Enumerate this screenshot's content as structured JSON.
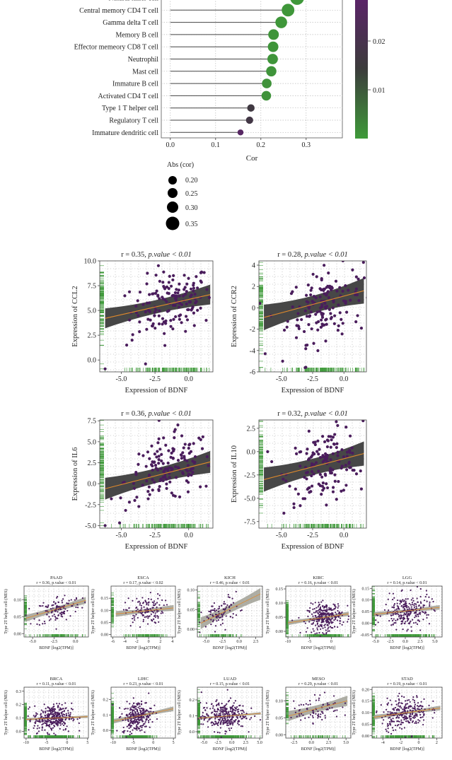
{
  "panel_a": {
    "x_axis_label": "Cor",
    "x_ticks": [
      "0.0",
      "0.1",
      "0.2",
      "0.3"
    ],
    "colorbar_ticks": [
      "0.02",
      "0.01"
    ],
    "size_legend_title": "Abs (cor)",
    "size_legend_labels": [
      "0.20",
      "0.25",
      "0.30",
      "0.35"
    ]
  },
  "chart_data": [
    {
      "type": "lollipop",
      "xlabel": "Cor",
      "xlim": [
        -0.02,
        0.38
      ],
      "color_scale": {
        "name": "p-value",
        "ticks": [
          0.02,
          0.01
        ],
        "range": [
          0.0,
          0.028
        ],
        "low_color": "#3f9a3a",
        "mid_color": "#3c3c3c",
        "high_color": "#5b2469"
      },
      "size_legend": {
        "title": "Abs (cor)",
        "levels": [
          0.2,
          0.25,
          0.3,
          0.35
        ]
      },
      "categories": [
        "Natural killer cell",
        "Central memory CD4 T cell",
        "Gamma delta T cell",
        "Memory B cell",
        "Effector memeory CD8 T cell",
        "Neutrophil",
        "Mast cell",
        "Immature B cell",
        "Activated CD4 T cell",
        "Type 1 T helper cell",
        "Regulatory T cell",
        "Immature dendritic cell"
      ],
      "values": [
        0.28,
        0.26,
        0.245,
        0.228,
        0.227,
        0.226,
        0.223,
        0.213,
        0.212,
        0.178,
        0.175,
        0.155
      ],
      "pvalues": [
        0.0003,
        0.0004,
        0.0005,
        0.0008,
        0.0008,
        0.0008,
        0.0009,
        0.0012,
        0.0012,
        0.016,
        0.017,
        0.026
      ]
    },
    {
      "type": "scatter",
      "title_r": "r = 0.35, ",
      "title_p": "p.value < 0.01",
      "xlabel": "Expression of BDNF",
      "ylabel": "Expression of CCL2",
      "xlim": [
        -6.6,
        1.8
      ],
      "ylim": [
        -1.2,
        10.0
      ],
      "x_ticks": [
        -5.0,
        -2.5,
        0.0
      ],
      "y_ticks": [
        0.0,
        2.5,
        5.0,
        7.5,
        10.0
      ],
      "x_tick_labels": [
        "-5.0",
        "-2.5",
        "0.0"
      ],
      "y_tick_labels": [
        "0.0",
        "2.5",
        "5.0",
        "7.5",
        "10.0"
      ],
      "fit": {
        "x": [
          -6.2,
          1.6
        ],
        "y": [
          4.2,
          6.6
        ]
      },
      "ci_ends": 1.0,
      "ci_mid": 0.35,
      "cloud": {
        "cx": -1.3,
        "cy": 5.8,
        "sx": 1.5,
        "sy": 1.6,
        "n": 150,
        "slope": 0.3
      },
      "extras": [
        [
          -6.2,
          -0.9
        ],
        [
          -4.6,
          1.5
        ],
        [
          -3.2,
          -0.4
        ],
        [
          -4.2,
          2.0
        ],
        [
          1.3,
          4.0
        ]
      ]
    },
    {
      "type": "scatter",
      "title_r": "r = 0.28, ",
      "title_p": "p.value < 0.01",
      "xlabel": "Expression of BDNF",
      "ylabel": "Expression of CCR2",
      "xlim": [
        -6.8,
        1.8
      ],
      "ylim": [
        -6.0,
        4.4
      ],
      "x_ticks": [
        -5.0,
        -2.5,
        0.0
      ],
      "y_ticks": [
        -6,
        -4,
        -2,
        0,
        2,
        4
      ],
      "x_tick_labels": [
        "-5.0",
        "-2.5",
        "0.0"
      ],
      "y_tick_labels": [
        "-6",
        "-4",
        "-2",
        "0",
        "2",
        "4"
      ],
      "fit": {
        "x": [
          -6.4,
          1.6
        ],
        "y": [
          -0.9,
          1.6
        ]
      },
      "ci_ends": 1.2,
      "ci_mid": 0.4,
      "cloud": {
        "cx": -1.5,
        "cy": 0.4,
        "sx": 1.5,
        "sy": 1.6,
        "n": 150,
        "slope": 0.35
      },
      "extras": [
        [
          -6.3,
          -4.3
        ],
        [
          -4.9,
          -5.0
        ],
        [
          -3.1,
          -5.6
        ],
        [
          -3.8,
          -2.8
        ],
        [
          1.4,
          -1.9
        ]
      ]
    },
    {
      "type": "scatter",
      "title_r": "r = 0.36, ",
      "title_p": "p.value < 0.01",
      "xlabel": "Expression of BDNF",
      "ylabel": "Expression of IL6",
      "xlim": [
        -6.6,
        1.8
      ],
      "ylim": [
        -5.3,
        7.6
      ],
      "x_ticks": [
        -5.0,
        -2.5,
        0.0
      ],
      "y_ticks": [
        -5.0,
        -2.5,
        0.0,
        2.5,
        5.0,
        7.5
      ],
      "x_tick_labels": [
        "-5.0",
        "-2.5",
        "0.0"
      ],
      "y_tick_labels": [
        "-5.0",
        "-2.5",
        "0.0",
        "2.5",
        "5.0",
        "7.5"
      ],
      "fit": {
        "x": [
          -6.2,
          1.6
        ],
        "y": [
          -0.6,
          2.6
        ]
      },
      "ci_ends": 1.3,
      "ci_mid": 0.45,
      "cloud": {
        "cx": -1.5,
        "cy": 1.6,
        "sx": 1.6,
        "sy": 1.9,
        "n": 150,
        "slope": 0.4
      },
      "extras": [
        [
          -6.2,
          -5.0
        ],
        [
          -4.4,
          -2.2
        ],
        [
          -4.0,
          -2.0
        ],
        [
          1.3,
          -0.3
        ],
        [
          -0.8,
          7.0
        ]
      ]
    },
    {
      "type": "scatter",
      "title_r": "r = 0.32, ",
      "title_p": "p.value < 0.01",
      "xlabel": "Expression of BDNF",
      "ylabel": "Expression of IL10",
      "xlim": [
        -6.8,
        1.8
      ],
      "ylim": [
        -8.2,
        3.4
      ],
      "x_ticks": [
        -5.0,
        -2.5,
        0.0
      ],
      "y_ticks": [
        -7.5,
        -5.0,
        -2.5,
        0.0,
        2.5
      ],
      "x_tick_labels": [
        "-5.0",
        "-2.5",
        "0.0"
      ],
      "y_tick_labels": [
        "-7.5",
        "-5.0",
        "-2.5",
        "0.0",
        "2.5"
      ],
      "fit": {
        "x": [
          -6.4,
          1.6
        ],
        "y": [
          -3.0,
          -0.2
        ]
      },
      "ci_ends": 1.3,
      "ci_mid": 0.45,
      "cloud": {
        "cx": -1.5,
        "cy": -1.4,
        "sx": 1.5,
        "sy": 1.8,
        "n": 150,
        "slope": 0.35
      },
      "extras": [
        [
          -6.1,
          0.0
        ],
        [
          -4.8,
          -6.6
        ],
        [
          -4.0,
          -5.6
        ],
        [
          1.4,
          -4.0
        ],
        [
          -0.5,
          2.8
        ]
      ]
    },
    {
      "type": "scatter",
      "title": "PAAD",
      "subtitle": "r = 0.36, p.value < 0.01",
      "xlabel": "BDNF [log2(TPM)]",
      "ylabel": "Type 2T helper cell (NES)",
      "xlim": [
        -6.0,
        1.5
      ],
      "ylim": [
        -0.01,
        0.14
      ],
      "x_tick_labels": [
        "-5.0",
        "-2.5",
        "0.0"
      ],
      "x_ticks": [
        -5.0,
        -2.5,
        0.0
      ],
      "y_tick_labels": [
        "0.00",
        "0.05",
        "0.10"
      ],
      "y_ticks": [
        0.0,
        0.05,
        0.1
      ],
      "fit": {
        "x": [
          -5.8,
          1.2
        ],
        "y": [
          0.045,
          0.098
        ]
      },
      "ci_ends": 0.01,
      "ci_mid": 0.004,
      "cloud": {
        "cx": -2.0,
        "cy": 0.072,
        "sx": 1.3,
        "sy": 0.02,
        "n": 120,
        "slope": 0.006
      }
    },
    {
      "type": "scatter",
      "title": "ESCA",
      "subtitle": "r = 0.17, p.value < 0.02",
      "xlabel": "BDNF [log2(TPM)]",
      "ylabel": "Type 2T helper cell (NES)",
      "xlim": [
        -6.3,
        4.5
      ],
      "ylim": [
        -0.01,
        0.2
      ],
      "x_tick_labels": [
        "-6",
        "-4",
        "-2",
        "0",
        "2",
        "4"
      ],
      "x_ticks": [
        -6,
        -4,
        -2,
        0,
        2,
        4
      ],
      "y_tick_labels": [
        "0.00",
        "0.05",
        "0.10",
        "0.15"
      ],
      "y_ticks": [
        0.0,
        0.05,
        0.1,
        0.15
      ],
      "fit": {
        "x": [
          -5.5,
          4.2
        ],
        "y": [
          0.085,
          0.11
        ]
      },
      "ci_ends": 0.012,
      "ci_mid": 0.004,
      "cloud": {
        "cx": -0.7,
        "cy": 0.1,
        "sx": 1.6,
        "sy": 0.03,
        "n": 130,
        "slope": 0.003
      }
    },
    {
      "type": "scatter",
      "title": "KICH",
      "subtitle": "r = 0.46, p.value < 0.01",
      "xlabel": "BDNF [log2(TPM)]",
      "ylabel": "Type 2T helper cell (NES)",
      "xlim": [
        -6.3,
        3.5
      ],
      "ylim": [
        -0.02,
        0.11
      ],
      "x_tick_labels": [
        "-5.0",
        "-2.5",
        "0.0",
        "2.5"
      ],
      "x_ticks": [
        -5.0,
        -2.5,
        0.0,
        2.5
      ],
      "y_tick_labels": [
        "0.00",
        "0.05",
        "0.10"
      ],
      "y_ticks": [
        0.0,
        0.05,
        0.1
      ],
      "fit": {
        "x": [
          -5.8,
          3.2
        ],
        "y": [
          0.015,
          0.09
        ]
      },
      "ci_ends": 0.015,
      "ci_mid": 0.005,
      "cloud": {
        "cx": -2.8,
        "cy": 0.04,
        "sx": 1.4,
        "sy": 0.018,
        "n": 90,
        "slope": 0.008
      }
    },
    {
      "type": "scatter",
      "title": "KIRC",
      "subtitle": "r = 0.16, p.value < 0.01",
      "xlabel": "BDNF [log2(TPM)]",
      "ylabel": "Type 2T helper cell (NES)",
      "xlim": [
        -10.5,
        4.5
      ],
      "ylim": [
        -0.02,
        0.16
      ],
      "x_tick_labels": [
        "-10",
        "-5",
        "0"
      ],
      "x_ticks": [
        -10,
        -5,
        0
      ],
      "y_tick_labels": [
        "0.00",
        "0.05",
        "0.10",
        "0.15"
      ],
      "y_ticks": [
        0.0,
        0.05,
        0.1,
        0.15
      ],
      "fit": {
        "x": [
          -10.0,
          4.0
        ],
        "y": [
          0.03,
          0.062
        ]
      },
      "ci_ends": 0.008,
      "ci_mid": 0.003,
      "cloud": {
        "cx": -1.5,
        "cy": 0.05,
        "sx": 2.0,
        "sy": 0.025,
        "n": 280,
        "slope": 0.002
      }
    },
    {
      "type": "scatter",
      "title": "LGG",
      "subtitle": "r = 0.14, p.value < 0.01",
      "xlabel": "BDNF [log2(TPM)]",
      "ylabel": "Type 2T helper cell (NES)",
      "xlim": [
        -5.6,
        6.2
      ],
      "ylim": [
        -0.06,
        0.16
      ],
      "x_tick_labels": [
        "-5.0",
        "-2.5",
        "0.0",
        "2.5",
        "5.0"
      ],
      "x_ticks": [
        -5.0,
        -2.5,
        0.0,
        2.5,
        5.0
      ],
      "y_tick_labels": [
        "-0.05",
        "0.00",
        "0.05",
        "0.10",
        "0.15"
      ],
      "y_ticks": [
        -0.05,
        0.0,
        0.05,
        0.1,
        0.15
      ],
      "fit": {
        "x": [
          -5.3,
          5.8
        ],
        "y": [
          0.038,
          0.068
        ]
      },
      "ci_ends": 0.01,
      "ci_mid": 0.003,
      "cloud": {
        "cx": 0.3,
        "cy": 0.05,
        "sx": 2.0,
        "sy": 0.035,
        "n": 250,
        "slope": 0.003
      }
    },
    {
      "type": "scatter",
      "title": "BRCA",
      "subtitle": "r = 0.11, p.value < 0.01",
      "xlabel": "BDNF [log2(TPM)]",
      "ylabel": "Type 2T helper cell (NES)",
      "xlim": [
        -10.5,
        5.2
      ],
      "ylim": [
        -0.05,
        0.33
      ],
      "x_tick_labels": [
        "-10",
        "-5",
        "0",
        "5"
      ],
      "x_ticks": [
        -10,
        -5,
        0,
        5
      ],
      "y_tick_labels": [
        "0.0",
        "0.1",
        "0.2",
        "0.3"
      ],
      "y_ticks": [
        0.0,
        0.1,
        0.2,
        0.3
      ],
      "fit": {
        "x": [
          -10.0,
          5.0
        ],
        "y": [
          0.09,
          0.11
        ]
      },
      "ci_ends": 0.01,
      "ci_mid": 0.004,
      "cloud": {
        "cx": -3.5,
        "cy": 0.1,
        "sx": 2.3,
        "sy": 0.05,
        "n": 320,
        "slope": 0.002
      }
    },
    {
      "type": "scatter",
      "title": "LIHC",
      "subtitle": "r = 0.23, p.value < 0.01",
      "xlabel": "BDNF [log2(TPM)]",
      "ylabel": "Type 2T helper cell (NES)",
      "xlim": [
        -10.5,
        5.5
      ],
      "ylim": [
        -0.05,
        0.28
      ],
      "x_tick_labels": [
        "-10",
        "-5",
        "0",
        "5"
      ],
      "x_ticks": [
        -10,
        -5,
        0,
        5
      ],
      "y_tick_labels": [
        "0.0",
        "0.1",
        "0.2"
      ],
      "y_ticks": [
        0.0,
        0.1,
        0.2
      ],
      "fit": {
        "x": [
          -9.8,
          5.0
        ],
        "y": [
          0.06,
          0.14
        ]
      },
      "ci_ends": 0.015,
      "ci_mid": 0.005,
      "cloud": {
        "cx": -4.0,
        "cy": 0.09,
        "sx": 1.8,
        "sy": 0.05,
        "n": 260,
        "slope": 0.005
      }
    },
    {
      "type": "scatter",
      "title": "LUAD",
      "subtitle": "r = 0.15, p.value < 0.01",
      "xlabel": "BDNF [log2(TPM)]",
      "ylabel": "Type 2T helper cell (NES)",
      "xlim": [
        -6.2,
        5.5
      ],
      "ylim": [
        -0.04,
        0.28
      ],
      "x_tick_labels": [
        "-5.0",
        "-2.5",
        "0.0",
        "2.5",
        "5.0"
      ],
      "x_ticks": [
        -5.0,
        -2.5,
        0.0,
        2.5,
        5.0
      ],
      "y_tick_labels": [
        "0.0",
        "0.1",
        "0.2"
      ],
      "y_ticks": [
        0.0,
        0.1,
        0.2
      ],
      "fit": {
        "x": [
          -6.0,
          5.2
        ],
        "y": [
          0.085,
          0.115
        ]
      },
      "ci_ends": 0.008,
      "ci_mid": 0.003,
      "cloud": {
        "cx": -1.5,
        "cy": 0.1,
        "sx": 2.0,
        "sy": 0.045,
        "n": 300,
        "slope": 0.003
      }
    },
    {
      "type": "scatter",
      "title": "MESO",
      "subtitle": "r = 0.29, p.value < 0.01",
      "xlabel": "BDNF [log2(TPM)]",
      "ylabel": "Type 2T helper cell (NES)",
      "xlim": [
        -3.7,
        5.7
      ],
      "ylim": [
        -0.01,
        0.14
      ],
      "x_tick_labels": [
        "-2.5",
        "0.0",
        "2.5",
        "5.0"
      ],
      "x_ticks": [
        -2.5,
        0.0,
        2.5,
        5.0
      ],
      "y_tick_labels": [
        "0.00",
        "0.05",
        "0.10"
      ],
      "y_ticks": [
        0.0,
        0.05,
        0.1
      ],
      "fit": {
        "x": [
          -3.3,
          5.2
        ],
        "y": [
          0.055,
          0.1
        ]
      },
      "ci_ends": 0.015,
      "ci_mid": 0.005,
      "cloud": {
        "cx": 0.8,
        "cy": 0.075,
        "sx": 1.7,
        "sy": 0.02,
        "n": 80,
        "slope": 0.004
      }
    },
    {
      "type": "scatter",
      "title": "STAD",
      "subtitle": "r = 0.19, p.value < 0.01",
      "xlabel": "BDNF [log2(TPM)]",
      "ylabel": "Type 2T helper cell (NES)",
      "xlim": [
        -5.2,
        2.6
      ],
      "ylim": [
        -0.01,
        0.21
      ],
      "x_tick_labels": [
        "-4",
        "-2",
        "0",
        "2"
      ],
      "x_ticks": [
        -4,
        -2,
        0,
        2
      ],
      "y_tick_labels": [
        "0.00",
        "0.05",
        "0.10",
        "0.15",
        "0.20"
      ],
      "y_ticks": [
        0.0,
        0.05,
        0.1,
        0.15,
        0.2
      ],
      "fit": {
        "x": [
          -5.0,
          2.4
        ],
        "y": [
          0.08,
          0.12
        ]
      },
      "ci_ends": 0.01,
      "ci_mid": 0.004,
      "cloud": {
        "cx": -1.6,
        "cy": 0.1,
        "sx": 1.3,
        "sy": 0.035,
        "n": 260,
        "slope": 0.006
      }
    }
  ]
}
